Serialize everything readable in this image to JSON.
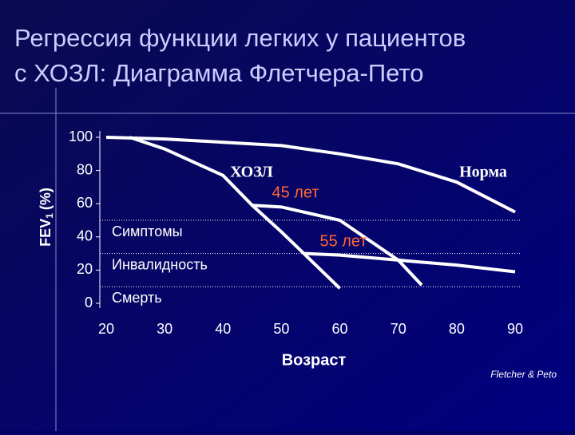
{
  "chart_data": {
    "type": "line",
    "title": [
      "Регрессия функции легких у пациентов",
      "с ХОЗЛ: Диаграмма Флетчера-Пето"
    ],
    "x_label": "Возраст",
    "y_label_parts": [
      "FEV",
      "1",
      "(%)"
    ],
    "xlim": [
      20,
      90
    ],
    "xticks": [
      20,
      30,
      40,
      50,
      60,
      70,
      80,
      90
    ],
    "ylim": [
      0,
      100
    ],
    "yticks": [
      0,
      20,
      40,
      60,
      80,
      100
    ],
    "series": [
      {
        "name": "Норма",
        "color": "#ffffff",
        "x": [
          20,
          30,
          40,
          50,
          60,
          70,
          80,
          90
        ],
        "values": [
          100,
          99,
          97,
          95,
          90,
          84,
          73,
          55
        ]
      },
      {
        "name": "ХОЗЛ",
        "color": "#ffffff",
        "x": [
          24,
          30,
          40,
          45,
          50,
          55,
          60
        ],
        "values": [
          100,
          93,
          77,
          59,
          43,
          26,
          9
        ]
      },
      {
        "name": "45 лет",
        "color": "#ff6633",
        "x": [
          45,
          50,
          60,
          70,
          74
        ],
        "values": [
          59,
          58,
          50,
          26,
          11
        ]
      },
      {
        "name": "55 лет",
        "color": "#ff6633",
        "x": [
          54,
          60,
          70,
          80,
          90
        ],
        "values": [
          30,
          29,
          26,
          23,
          19
        ]
      }
    ],
    "thresholds": [
      {
        "value": 50,
        "label": "Симптомы"
      },
      {
        "value": 30,
        "label": "Инвалидность"
      },
      {
        "value": 10,
        "label": "Смерть"
      }
    ],
    "source": "Fletcher & Peto"
  }
}
